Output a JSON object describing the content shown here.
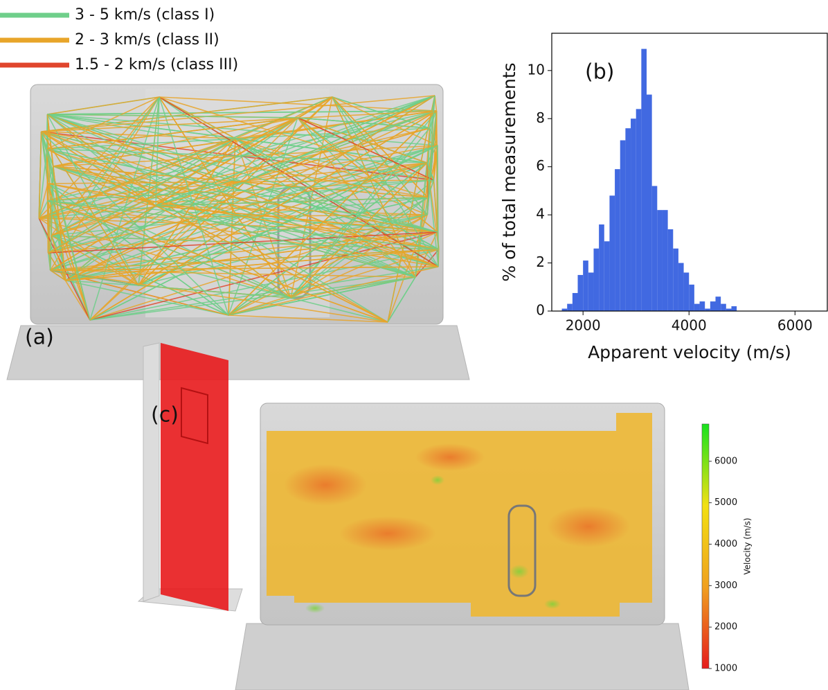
{
  "panel_labels": {
    "a": "(a)",
    "b": "(b)",
    "c": "(c)"
  },
  "ray_legend": [
    {
      "label": "3 - 5 km/s (class I)",
      "color": "#6fcf8a"
    },
    {
      "label": "2 - 3 km/s (class II)",
      "color": "#e8a52a"
    },
    {
      "label": "1.5 - 2 km/s (class III)",
      "color": "#e0452c"
    }
  ],
  "chart_data": {
    "type": "histogram",
    "xlabel": "Apparent velocity (m/s)",
    "ylabel": "% of total measurements",
    "bins": [
      1600,
      1700,
      1800,
      1900,
      2000,
      2100,
      2200,
      2300,
      2400,
      2500,
      2600,
      2700,
      2800,
      2900,
      3000,
      3100,
      3200,
      3300,
      3400,
      3500,
      3600,
      3700,
      3800,
      3900,
      4000,
      4100,
      4200,
      4300,
      4400,
      4500,
      4600,
      4700,
      4800,
      4900
    ],
    "values": [
      0.1,
      0.3,
      0.75,
      1.5,
      2.1,
      1.6,
      2.6,
      3.6,
      2.9,
      4.8,
      5.9,
      7.1,
      7.6,
      8.0,
      8.4,
      10.9,
      9.0,
      5.2,
      4.2,
      4.2,
      3.4,
      2.6,
      2.0,
      1.6,
      1.1,
      0.3,
      0.4,
      0.1,
      0.4,
      0.6,
      0.3,
      0.1,
      0.2
    ],
    "color": "#4169e1",
    "xlim": [
      1410,
      6610
    ],
    "ylim": [
      0,
      11.55
    ],
    "xticks": [
      2000,
      4000,
      6000
    ],
    "yticks": [
      0,
      2,
      4,
      6,
      8,
      10
    ]
  },
  "colorbar": {
    "label": "Velocity (m/s)",
    "lim": [
      1000,
      6900
    ],
    "ticks": [
      1000,
      2000,
      3000,
      4000,
      5000,
      6000
    ],
    "colors": [
      "#e51c1c",
      "#f0a020",
      "#f2e012",
      "#17e21d"
    ]
  }
}
